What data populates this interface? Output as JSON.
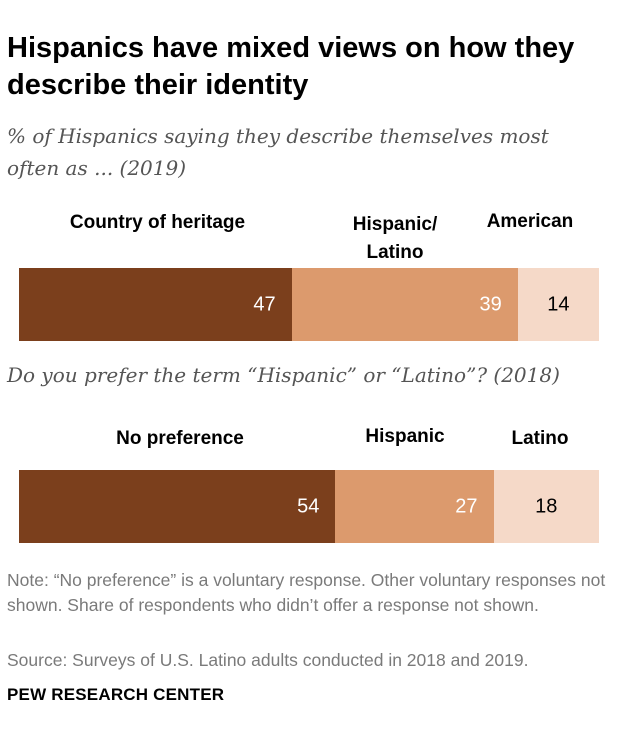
{
  "title": "Hispanics have mixed views on how they describe their identity",
  "chart_data": [
    {
      "type": "bar",
      "orientation": "horizontal-stacked",
      "subtitle": "% of Hispanics saying they describe themselves most often as ... (2019)",
      "categories": [
        "Country of heritage",
        "Hispanic/ Latino",
        "American"
      ],
      "values": [
        47,
        39,
        14
      ],
      "colors": [
        "#7b3f1c",
        "#dc9a6d",
        "#f5d9c8"
      ]
    },
    {
      "type": "bar",
      "orientation": "horizontal-stacked",
      "subtitle": "Do you prefer the term “Hispanic” or “Latino”? (2018)",
      "categories": [
        "No preference",
        "Hispanic",
        "Latino"
      ],
      "values": [
        54,
        27,
        18
      ],
      "colors": [
        "#7b3f1c",
        "#dc9a6d",
        "#f5d9c8"
      ]
    }
  ],
  "note": "Note: “No preference” is a voluntary response. Other voluntary responses not shown. Share of respondents who didn’t offer a response not shown.",
  "source": "Source: Surveys of U.S. Latino adults conducted in 2018 and 2019.",
  "brand": "PEW RESEARCH CENTER"
}
